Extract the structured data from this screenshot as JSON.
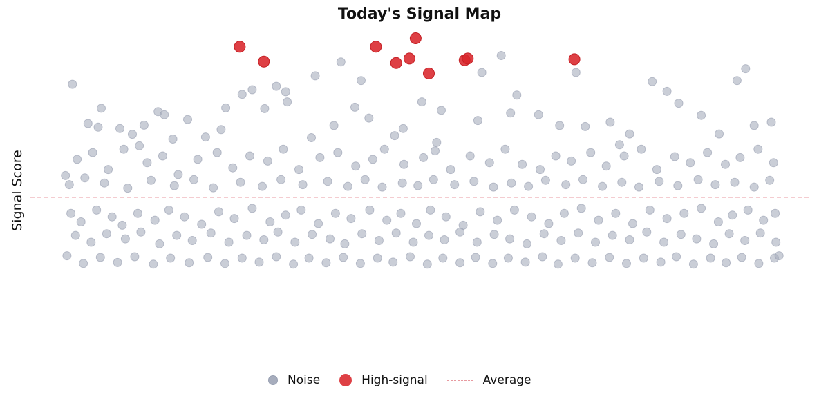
{
  "chart_data": {
    "type": "scatter",
    "title": "Today's Signal Map",
    "xlabel": "",
    "ylabel": "Signal Score",
    "xlim": [
      0,
      1
    ],
    "ylim": [
      0,
      1
    ],
    "grid": false,
    "legend_position": "bottom",
    "reference_line": {
      "name": "Average",
      "y": 0.478,
      "style": "dashed",
      "color": "#e89aa0"
    },
    "colors": {
      "noise": "#a7adbd",
      "high": "#d9262b"
    },
    "legend": [
      "Noise",
      "High-signal",
      "Average"
    ],
    "series": [
      {
        "name": "High-signal",
        "color": "#d9262b",
        "points": [
          [
            0.269,
            0.923
          ],
          [
            0.3,
            0.879
          ],
          [
            0.444,
            0.923
          ],
          [
            0.47,
            0.875
          ],
          [
            0.487,
            0.888
          ],
          [
            0.495,
            0.948
          ],
          [
            0.512,
            0.844
          ],
          [
            0.558,
            0.883
          ],
          [
            0.562,
            0.888
          ],
          [
            0.699,
            0.886
          ]
        ]
      },
      {
        "name": "Noise",
        "color": "#a7adbd",
        "points": [
          [
            0.054,
            0.812
          ],
          [
            0.074,
            0.696
          ],
          [
            0.091,
            0.741
          ],
          [
            0.115,
            0.681
          ],
          [
            0.131,
            0.664
          ],
          [
            0.146,
            0.691
          ],
          [
            0.164,
            0.731
          ],
          [
            0.172,
            0.722
          ],
          [
            0.202,
            0.708
          ],
          [
            0.225,
            0.656
          ],
          [
            0.251,
            0.742
          ],
          [
            0.272,
            0.782
          ],
          [
            0.285,
            0.796
          ],
          [
            0.301,
            0.74
          ],
          [
            0.316,
            0.806
          ],
          [
            0.328,
            0.79
          ],
          [
            0.361,
            0.654
          ],
          [
            0.366,
            0.837
          ],
          [
            0.399,
            0.878
          ],
          [
            0.417,
            0.744
          ],
          [
            0.425,
            0.823
          ],
          [
            0.479,
            0.681
          ],
          [
            0.503,
            0.76
          ],
          [
            0.528,
            0.735
          ],
          [
            0.58,
            0.847
          ],
          [
            0.605,
            0.897
          ],
          [
            0.617,
            0.727
          ],
          [
            0.653,
            0.722
          ],
          [
            0.701,
            0.847
          ],
          [
            0.713,
            0.687
          ],
          [
            0.757,
            0.633
          ],
          [
            0.799,
            0.82
          ],
          [
            0.818,
            0.791
          ],
          [
            0.833,
            0.756
          ],
          [
            0.908,
            0.823
          ],
          [
            0.919,
            0.858
          ],
          [
            0.087,
            0.685
          ],
          [
            0.14,
            0.63
          ],
          [
            0.183,
            0.65
          ],
          [
            0.245,
            0.678
          ],
          [
            0.33,
            0.76
          ],
          [
            0.39,
            0.69
          ],
          [
            0.435,
            0.712
          ],
          [
            0.468,
            0.66
          ],
          [
            0.522,
            0.64
          ],
          [
            0.575,
            0.705
          ],
          [
            0.625,
            0.78
          ],
          [
            0.68,
            0.69
          ],
          [
            0.745,
            0.7
          ],
          [
            0.77,
            0.665
          ],
          [
            0.862,
            0.72
          ],
          [
            0.885,
            0.665
          ],
          [
            0.93,
            0.69
          ],
          [
            0.952,
            0.7
          ],
          [
            0.045,
            0.542
          ],
          [
            0.06,
            0.59
          ],
          [
            0.08,
            0.61
          ],
          [
            0.1,
            0.56
          ],
          [
            0.12,
            0.62
          ],
          [
            0.15,
            0.58
          ],
          [
            0.17,
            0.6
          ],
          [
            0.19,
            0.545
          ],
          [
            0.215,
            0.59
          ],
          [
            0.24,
            0.61
          ],
          [
            0.26,
            0.565
          ],
          [
            0.282,
            0.6
          ],
          [
            0.305,
            0.585
          ],
          [
            0.325,
            0.62
          ],
          [
            0.345,
            0.56
          ],
          [
            0.372,
            0.595
          ],
          [
            0.395,
            0.61
          ],
          [
            0.418,
            0.57
          ],
          [
            0.44,
            0.59
          ],
          [
            0.455,
            0.62
          ],
          [
            0.48,
            0.575
          ],
          [
            0.505,
            0.595
          ],
          [
            0.52,
            0.615
          ],
          [
            0.54,
            0.56
          ],
          [
            0.565,
            0.6
          ],
          [
            0.59,
            0.58
          ],
          [
            0.61,
            0.62
          ],
          [
            0.632,
            0.575
          ],
          [
            0.655,
            0.56
          ],
          [
            0.675,
            0.6
          ],
          [
            0.695,
            0.585
          ],
          [
            0.72,
            0.61
          ],
          [
            0.74,
            0.57
          ],
          [
            0.763,
            0.6
          ],
          [
            0.785,
            0.62
          ],
          [
            0.805,
            0.56
          ],
          [
            0.828,
            0.598
          ],
          [
            0.848,
            0.58
          ],
          [
            0.87,
            0.61
          ],
          [
            0.893,
            0.575
          ],
          [
            0.912,
            0.595
          ],
          [
            0.935,
            0.62
          ],
          [
            0.955,
            0.58
          ],
          [
            0.05,
            0.515
          ],
          [
            0.07,
            0.535
          ],
          [
            0.095,
            0.52
          ],
          [
            0.125,
            0.505
          ],
          [
            0.155,
            0.528
          ],
          [
            0.185,
            0.512
          ],
          [
            0.21,
            0.53
          ],
          [
            0.235,
            0.506
          ],
          [
            0.27,
            0.522
          ],
          [
            0.298,
            0.51
          ],
          [
            0.322,
            0.53
          ],
          [
            0.35,
            0.515
          ],
          [
            0.382,
            0.525
          ],
          [
            0.408,
            0.51
          ],
          [
            0.43,
            0.53
          ],
          [
            0.452,
            0.508
          ],
          [
            0.478,
            0.52
          ],
          [
            0.498,
            0.512
          ],
          [
            0.518,
            0.53
          ],
          [
            0.545,
            0.515
          ],
          [
            0.57,
            0.525
          ],
          [
            0.595,
            0.508
          ],
          [
            0.618,
            0.52
          ],
          [
            0.64,
            0.51
          ],
          [
            0.662,
            0.528
          ],
          [
            0.688,
            0.515
          ],
          [
            0.71,
            0.53
          ],
          [
            0.735,
            0.51
          ],
          [
            0.76,
            0.522
          ],
          [
            0.782,
            0.508
          ],
          [
            0.808,
            0.525
          ],
          [
            0.832,
            0.512
          ],
          [
            0.858,
            0.53
          ],
          [
            0.88,
            0.515
          ],
          [
            0.905,
            0.522
          ],
          [
            0.93,
            0.508
          ],
          [
            0.95,
            0.528
          ],
          [
            0.052,
            0.43
          ],
          [
            0.065,
            0.405
          ],
          [
            0.085,
            0.44
          ],
          [
            0.105,
            0.42
          ],
          [
            0.118,
            0.395
          ],
          [
            0.138,
            0.43
          ],
          [
            0.16,
            0.41
          ],
          [
            0.178,
            0.44
          ],
          [
            0.198,
            0.42
          ],
          [
            0.22,
            0.398
          ],
          [
            0.242,
            0.435
          ],
          [
            0.262,
            0.415
          ],
          [
            0.285,
            0.445
          ],
          [
            0.308,
            0.405
          ],
          [
            0.328,
            0.425
          ],
          [
            0.348,
            0.44
          ],
          [
            0.37,
            0.4
          ],
          [
            0.392,
            0.43
          ],
          [
            0.412,
            0.415
          ],
          [
            0.436,
            0.44
          ],
          [
            0.458,
            0.41
          ],
          [
            0.476,
            0.43
          ],
          [
            0.496,
            0.4
          ],
          [
            0.514,
            0.44
          ],
          [
            0.534,
            0.42
          ],
          [
            0.556,
            0.395
          ],
          [
            0.578,
            0.435
          ],
          [
            0.6,
            0.41
          ],
          [
            0.622,
            0.44
          ],
          [
            0.644,
            0.42
          ],
          [
            0.666,
            0.4
          ],
          [
            0.686,
            0.43
          ],
          [
            0.708,
            0.445
          ],
          [
            0.73,
            0.41
          ],
          [
            0.752,
            0.43
          ],
          [
            0.774,
            0.4
          ],
          [
            0.796,
            0.44
          ],
          [
            0.818,
            0.415
          ],
          [
            0.84,
            0.43
          ],
          [
            0.862,
            0.445
          ],
          [
            0.884,
            0.405
          ],
          [
            0.902,
            0.425
          ],
          [
            0.922,
            0.44
          ],
          [
            0.942,
            0.41
          ],
          [
            0.957,
            0.43
          ],
          [
            0.058,
            0.365
          ],
          [
            0.078,
            0.345
          ],
          [
            0.098,
            0.37
          ],
          [
            0.122,
            0.355
          ],
          [
            0.142,
            0.375
          ],
          [
            0.166,
            0.34
          ],
          [
            0.188,
            0.365
          ],
          [
            0.208,
            0.35
          ],
          [
            0.232,
            0.372
          ],
          [
            0.255,
            0.345
          ],
          [
            0.278,
            0.365
          ],
          [
            0.3,
            0.352
          ],
          [
            0.318,
            0.375
          ],
          [
            0.34,
            0.345
          ],
          [
            0.362,
            0.368
          ],
          [
            0.385,
            0.355
          ],
          [
            0.404,
            0.34
          ],
          [
            0.426,
            0.37
          ],
          [
            0.448,
            0.35
          ],
          [
            0.47,
            0.372
          ],
          [
            0.492,
            0.345
          ],
          [
            0.512,
            0.365
          ],
          [
            0.532,
            0.352
          ],
          [
            0.552,
            0.375
          ],
          [
            0.574,
            0.345
          ],
          [
            0.596,
            0.368
          ],
          [
            0.616,
            0.355
          ],
          [
            0.638,
            0.34
          ],
          [
            0.66,
            0.37
          ],
          [
            0.682,
            0.35
          ],
          [
            0.704,
            0.372
          ],
          [
            0.726,
            0.345
          ],
          [
            0.748,
            0.365
          ],
          [
            0.77,
            0.352
          ],
          [
            0.792,
            0.375
          ],
          [
            0.814,
            0.345
          ],
          [
            0.836,
            0.368
          ],
          [
            0.856,
            0.355
          ],
          [
            0.878,
            0.34
          ],
          [
            0.898,
            0.37
          ],
          [
            0.918,
            0.35
          ],
          [
            0.938,
            0.372
          ],
          [
            0.958,
            0.345
          ],
          [
            0.047,
            0.305
          ],
          [
            0.068,
            0.282
          ],
          [
            0.09,
            0.3
          ],
          [
            0.112,
            0.285
          ],
          [
            0.134,
            0.302
          ],
          [
            0.158,
            0.28
          ],
          [
            0.18,
            0.298
          ],
          [
            0.204,
            0.284
          ],
          [
            0.228,
            0.3
          ],
          [
            0.25,
            0.282
          ],
          [
            0.272,
            0.298
          ],
          [
            0.294,
            0.286
          ],
          [
            0.316,
            0.302
          ],
          [
            0.338,
            0.28
          ],
          [
            0.358,
            0.298
          ],
          [
            0.38,
            0.284
          ],
          [
            0.402,
            0.3
          ],
          [
            0.424,
            0.282
          ],
          [
            0.446,
            0.298
          ],
          [
            0.466,
            0.286
          ],
          [
            0.488,
            0.302
          ],
          [
            0.51,
            0.28
          ],
          [
            0.53,
            0.298
          ],
          [
            0.552,
            0.284
          ],
          [
            0.572,
            0.3
          ],
          [
            0.594,
            0.282
          ],
          [
            0.614,
            0.298
          ],
          [
            0.636,
            0.286
          ],
          [
            0.658,
            0.302
          ],
          [
            0.678,
            0.28
          ],
          [
            0.7,
            0.298
          ],
          [
            0.722,
            0.284
          ],
          [
            0.744,
            0.3
          ],
          [
            0.766,
            0.282
          ],
          [
            0.788,
            0.298
          ],
          [
            0.81,
            0.286
          ],
          [
            0.83,
            0.302
          ],
          [
            0.852,
            0.28
          ],
          [
            0.874,
            0.298
          ],
          [
            0.894,
            0.284
          ],
          [
            0.914,
            0.3
          ],
          [
            0.936,
            0.282
          ],
          [
            0.956,
            0.298
          ],
          [
            0.962,
            0.305
          ]
        ]
      }
    ]
  }
}
